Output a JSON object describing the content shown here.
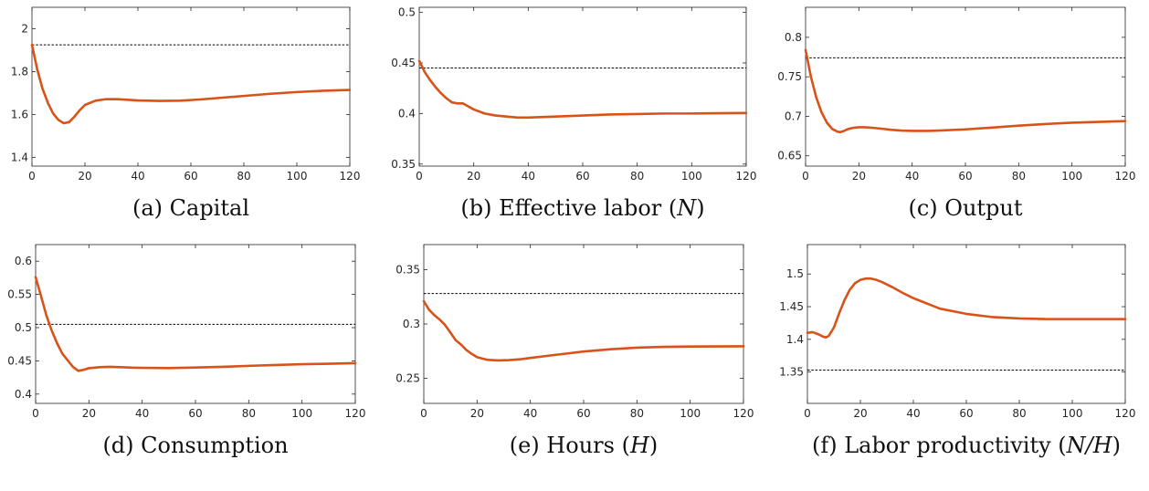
{
  "chart_data": [
    {
      "type": "line",
      "caption": "(a) Capital",
      "xlim": [
        0,
        120
      ],
      "ylim": [
        1.36,
        2.1
      ],
      "xticks": [
        0,
        20,
        40,
        60,
        80,
        100,
        120
      ],
      "yticks": [
        1.4,
        1.6,
        1.8,
        2
      ],
      "ytick_labels": [
        "1.4",
        "1.6",
        "1.8",
        "2"
      ],
      "reference": 1.925,
      "x": [
        0,
        2,
        4,
        6,
        8,
        10,
        12,
        14,
        16,
        18,
        20,
        24,
        28,
        32,
        36,
        40,
        48,
        56,
        64,
        72,
        80,
        90,
        100,
        110,
        120
      ],
      "y": [
        1.925,
        1.81,
        1.72,
        1.655,
        1.605,
        1.575,
        1.56,
        1.565,
        1.59,
        1.62,
        1.645,
        1.665,
        1.672,
        1.672,
        1.669,
        1.666,
        1.664,
        1.665,
        1.671,
        1.679,
        1.687,
        1.697,
        1.705,
        1.711,
        1.715
      ]
    },
    {
      "type": "line",
      "caption": "(b) Effective labor (N)",
      "caption_parts": [
        "(b) Effective labor (",
        "N",
        ")"
      ],
      "xlim": [
        0,
        120
      ],
      "ylim": [
        0.348,
        0.505
      ],
      "xticks": [
        0,
        20,
        40,
        60,
        80,
        100,
        120
      ],
      "yticks": [
        0.35,
        0.4,
        0.45,
        0.5
      ],
      "ytick_labels": [
        "0.35",
        "0.4",
        "0.45",
        "0.5"
      ],
      "reference": 0.445,
      "x": [
        0,
        2,
        4,
        6,
        8,
        10,
        12,
        14,
        16,
        18,
        20,
        24,
        28,
        32,
        36,
        40,
        50,
        60,
        70,
        80,
        90,
        100,
        110,
        120
      ],
      "y": [
        0.452,
        0.441,
        0.433,
        0.426,
        0.42,
        0.415,
        0.411,
        0.41,
        0.41,
        0.407,
        0.404,
        0.4,
        0.398,
        0.397,
        0.396,
        0.396,
        0.397,
        0.398,
        0.399,
        0.3995,
        0.4,
        0.4,
        0.4003,
        0.4005
      ]
    },
    {
      "type": "line",
      "caption": "(c) Output",
      "xlim": [
        0,
        120
      ],
      "ylim": [
        0.637,
        0.838
      ],
      "xticks": [
        0,
        20,
        40,
        60,
        80,
        100,
        120
      ],
      "yticks": [
        0.65,
        0.7,
        0.75,
        0.8
      ],
      "ytick_labels": [
        "0.65",
        "0.7",
        "0.75",
        "0.8"
      ],
      "reference": 0.774,
      "x": [
        0,
        2,
        4,
        6,
        8,
        10,
        12,
        13,
        14,
        16,
        18,
        20,
        22,
        24,
        28,
        32,
        36,
        40,
        45,
        50,
        60,
        70,
        80,
        90,
        100,
        110,
        120
      ],
      "y": [
        0.784,
        0.75,
        0.724,
        0.705,
        0.692,
        0.684,
        0.6805,
        0.68,
        0.681,
        0.684,
        0.6855,
        0.6862,
        0.6862,
        0.6858,
        0.6845,
        0.683,
        0.682,
        0.6815,
        0.6815,
        0.682,
        0.6835,
        0.6857,
        0.6882,
        0.6903,
        0.692,
        0.693,
        0.694
      ]
    },
    {
      "type": "line",
      "caption": "(d) Consumption",
      "xlim": [
        0,
        120
      ],
      "ylim": [
        0.386,
        0.625
      ],
      "xticks": [
        0,
        20,
        40,
        60,
        80,
        100,
        120
      ],
      "yticks": [
        0.4,
        0.45,
        0.5,
        0.55,
        0.6
      ],
      "ytick_labels": [
        "0.4",
        "0.45",
        "0.5",
        "0.55",
        "0.6"
      ],
      "reference": 0.505,
      "x": [
        0,
        2,
        4,
        6,
        8,
        10,
        12,
        14,
        16,
        18,
        20,
        24,
        28,
        32,
        36,
        40,
        50,
        60,
        70,
        80,
        90,
        100,
        110,
        120
      ],
      "y": [
        0.576,
        0.548,
        0.519,
        0.496,
        0.477,
        0.461,
        0.451,
        0.441,
        0.435,
        0.4365,
        0.439,
        0.4405,
        0.441,
        0.4405,
        0.4398,
        0.4395,
        0.4392,
        0.44,
        0.441,
        0.4425,
        0.4438,
        0.445,
        0.4457,
        0.4465
      ]
    },
    {
      "type": "line",
      "caption": "(e) Hours (H)",
      "caption_parts": [
        "(e) Hours (",
        "H",
        ")"
      ],
      "xlim": [
        0,
        120
      ],
      "ylim": [
        0.227,
        0.373
      ],
      "xticks": [
        0,
        20,
        40,
        60,
        80,
        100,
        120
      ],
      "yticks": [
        0.25,
        0.3,
        0.35
      ],
      "ytick_labels": [
        "0.25",
        "0.3",
        "0.35"
      ],
      "reference": 0.328,
      "x": [
        0,
        2,
        4,
        6,
        8,
        10,
        12,
        14,
        16,
        18,
        20,
        24,
        28,
        32,
        36,
        40,
        50,
        60,
        70,
        80,
        90,
        100,
        110,
        120
      ],
      "y": [
        0.321,
        0.313,
        0.308,
        0.304,
        0.299,
        0.292,
        0.285,
        0.281,
        0.276,
        0.2725,
        0.2695,
        0.267,
        0.2665,
        0.2668,
        0.2675,
        0.2688,
        0.2718,
        0.2747,
        0.2768,
        0.2782,
        0.279,
        0.2793,
        0.2794,
        0.2795
      ]
    },
    {
      "type": "line",
      "caption": "(f) Labor productivity (N/H)",
      "caption_parts": [
        "(f) Labor productivity (",
        "N/H",
        ")"
      ],
      "xlim": [
        0,
        120
      ],
      "ylim": [
        1.302,
        1.545
      ],
      "xticks": [
        0,
        20,
        40,
        60,
        80,
        100,
        120
      ],
      "yticks": [
        1.35,
        1.4,
        1.45,
        1.5
      ],
      "ytick_labels": [
        "1.35",
        "1.4",
        "1.45",
        "1.5"
      ],
      "reference": 1.353,
      "x": [
        0,
        2,
        4,
        6,
        7,
        8,
        10,
        12,
        14,
        16,
        18,
        20,
        22,
        24,
        26,
        28,
        32,
        36,
        40,
        50,
        60,
        70,
        80,
        90,
        100,
        110,
        120
      ],
      "y": [
        1.41,
        1.411,
        1.408,
        1.404,
        1.403,
        1.405,
        1.418,
        1.44,
        1.46,
        1.476,
        1.486,
        1.491,
        1.493,
        1.493,
        1.491,
        1.488,
        1.48,
        1.471,
        1.463,
        1.447,
        1.439,
        1.434,
        1.432,
        1.431,
        1.431,
        1.431,
        1.431
      ]
    }
  ]
}
